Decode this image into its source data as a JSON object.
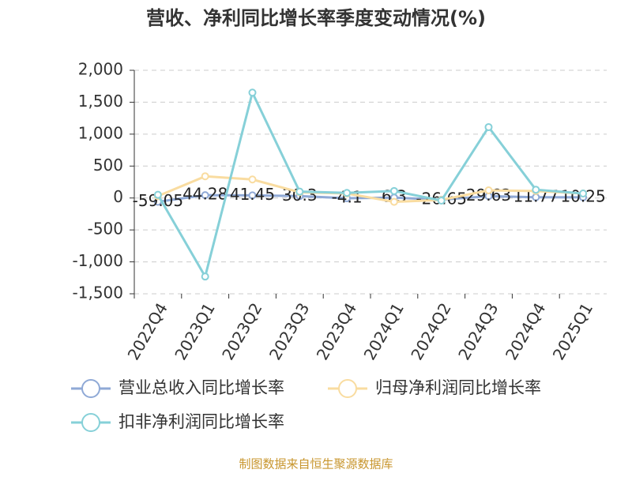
{
  "chart_data": {
    "type": "line",
    "title": "营收、净利同比增长率季度变动情况(%)",
    "categories": [
      "2022Q4",
      "2023Q1",
      "2023Q2",
      "2023Q3",
      "2023Q4",
      "2024Q1",
      "2024Q2",
      "2024Q3",
      "2024Q4",
      "2025Q1"
    ],
    "series": [
      {
        "name": "营业总收入同比增长率",
        "color": "#8fa9d6",
        "values": [
          -59.05,
          44.28,
          41.45,
          30.3,
          -4.1,
          6.3,
          -26.65,
          29.63,
          11.77,
          10.25
        ],
        "show_labels": true
      },
      {
        "name": "归母净利润同比增长率",
        "color": "#f9dca0",
        "values": [
          30,
          340,
          290,
          90,
          70,
          -60,
          -30,
          120,
          110,
          70
        ]
      },
      {
        "name": "扣非净利润同比增长率",
        "color": "#86d0d8",
        "values": [
          50,
          -1230,
          1650,
          100,
          80,
          110,
          -40,
          1110,
          130,
          70
        ]
      }
    ],
    "ylim": [
      -1500,
      2000
    ],
    "yticks": [
      {
        "value": -1500,
        "label": "-1,500"
      },
      {
        "value": -1000,
        "label": "-1,000"
      },
      -500,
      0,
      500,
      {
        "value": 1000,
        "label": "1,000"
      },
      {
        "value": 1500,
        "label": "1,500"
      },
      {
        "value": 2000,
        "label": "2,000"
      }
    ],
    "grid": true,
    "source": "制图数据来自恒生聚源数据库"
  }
}
